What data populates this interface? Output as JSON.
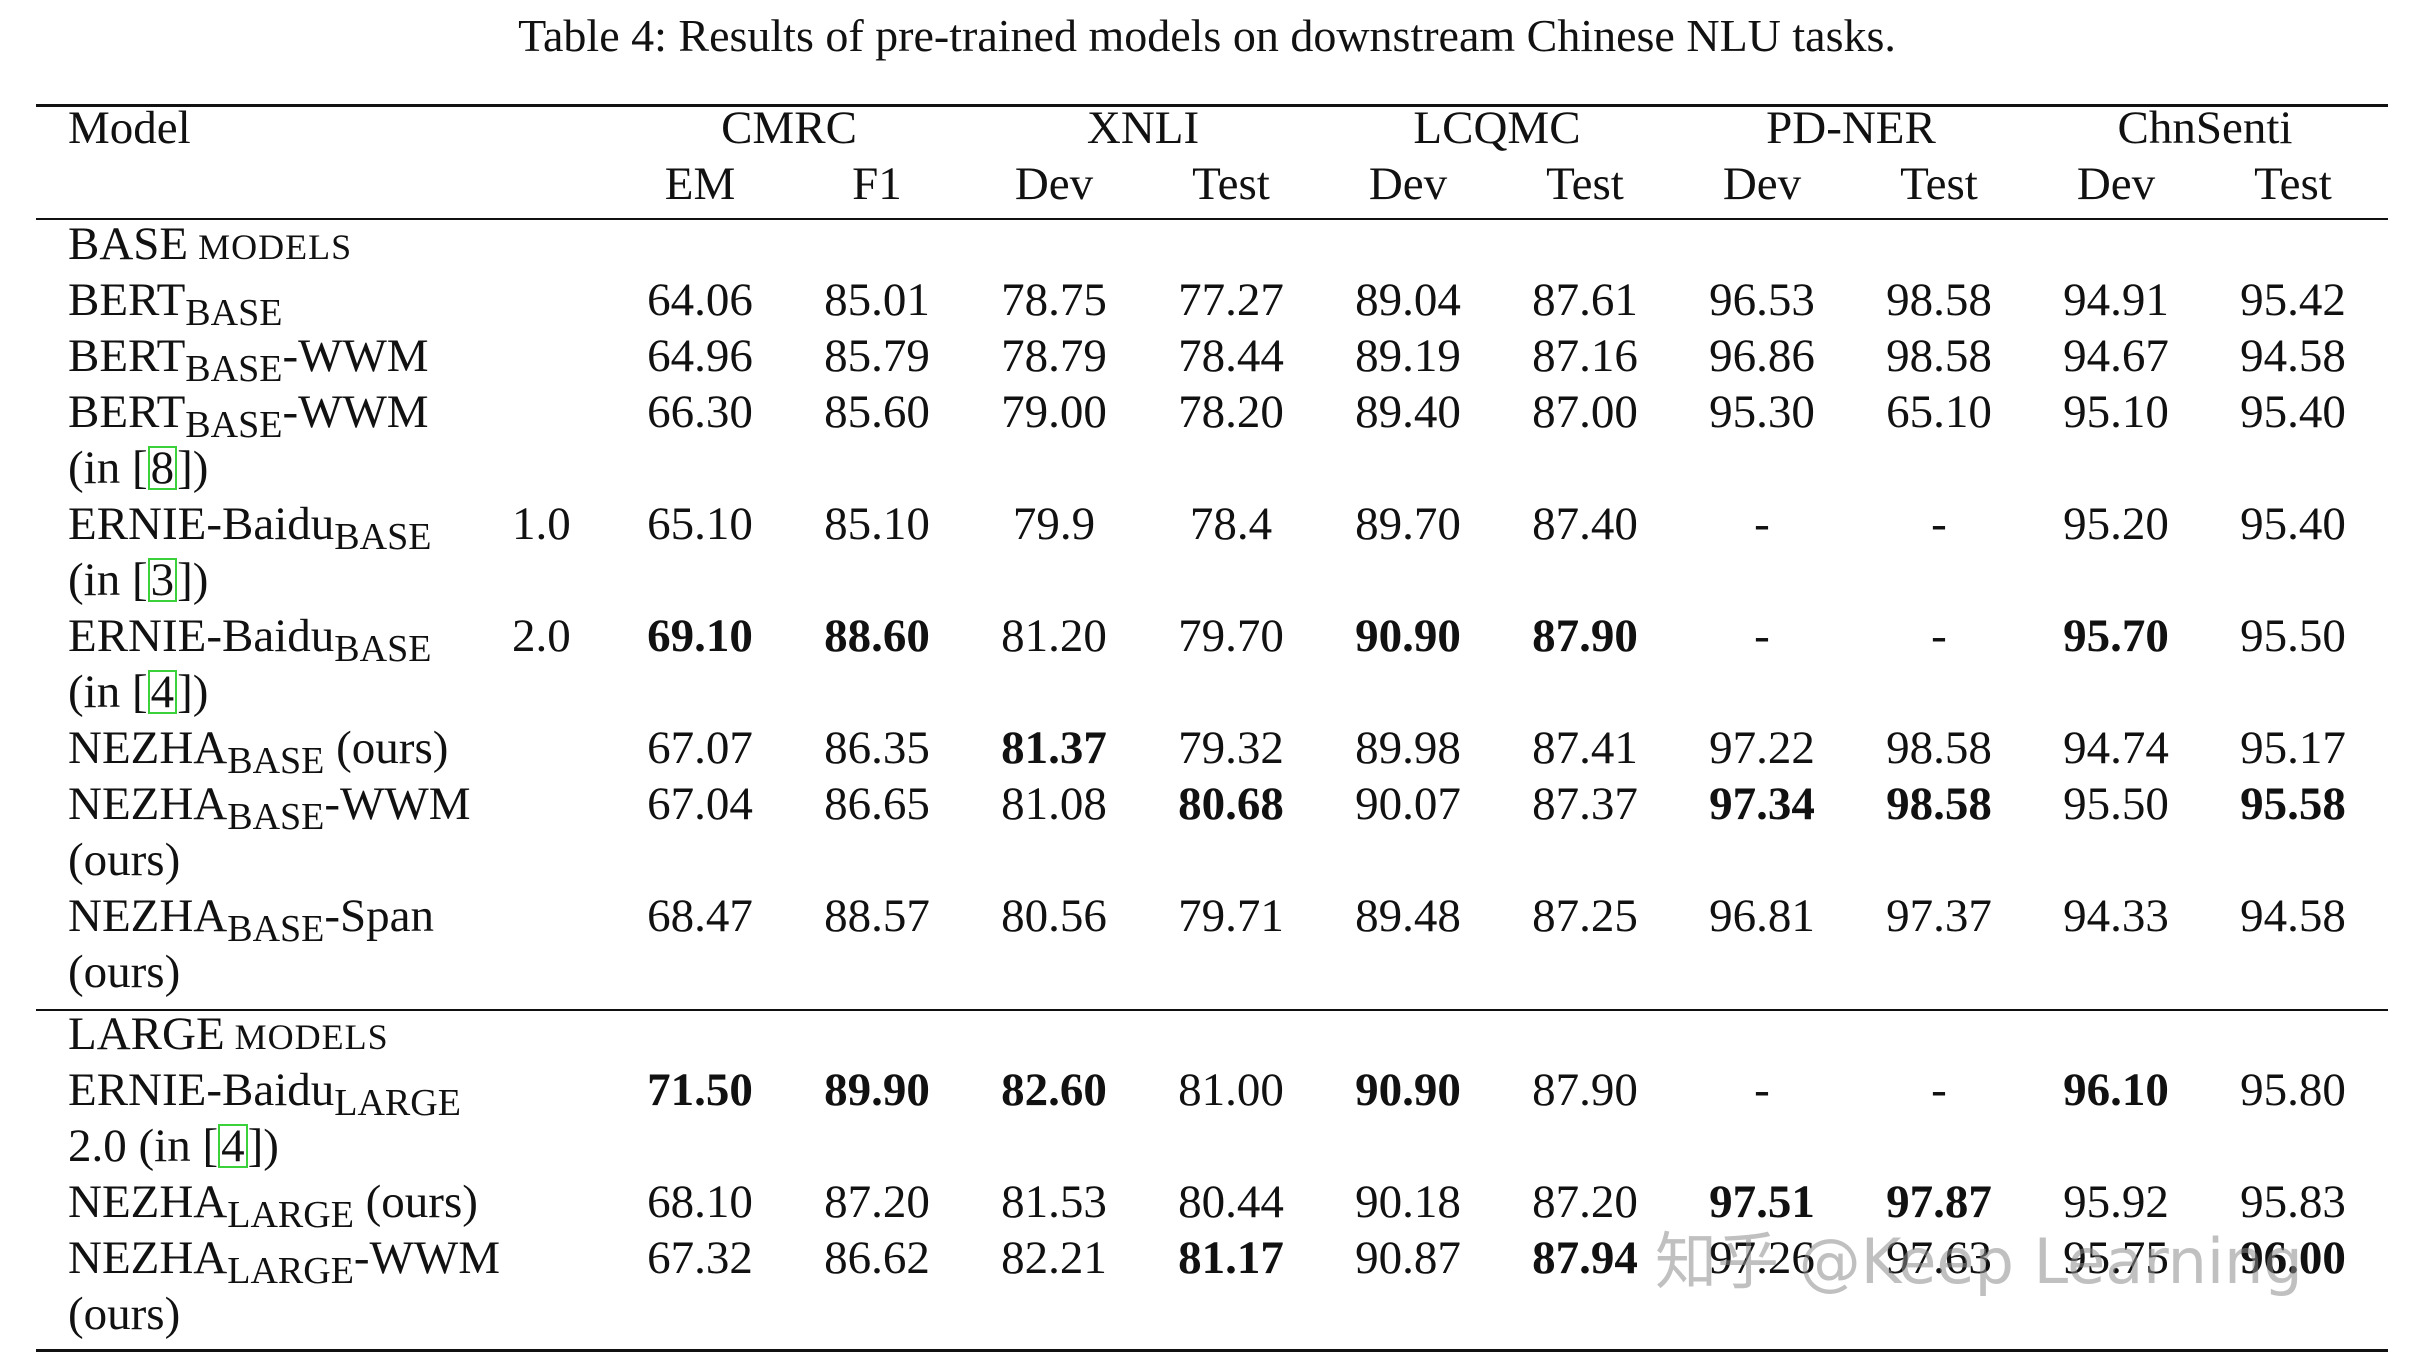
{
  "caption": "Table 4: Results of pre-trained models on downstream Chinese NLU tasks.",
  "header": {
    "model": "Model",
    "groups": [
      "CMRC",
      "XNLI",
      "LCQMC",
      "PD-NER",
      "ChnSenti"
    ],
    "subcols": [
      "EM",
      "F1",
      "Dev",
      "Test",
      "Dev",
      "Test",
      "Dev",
      "Test",
      "Dev",
      "Test"
    ]
  },
  "sections": [
    {
      "title_big": "BASE",
      "title_small": " MODELS",
      "rows": [
        {
          "base": "BERT",
          "sub": "BASE",
          "tail": "",
          "line2_pre": "",
          "ref": "",
          "line2_post": "",
          "ver": "",
          "values": [
            "64.06",
            "85.01",
            "78.75",
            "77.27",
            "89.04",
            "87.61",
            "96.53",
            "98.58",
            "94.91",
            "95.42"
          ],
          "bold": [
            false,
            false,
            false,
            false,
            false,
            false,
            false,
            false,
            false,
            false
          ]
        },
        {
          "base": "BERT",
          "sub": "BASE",
          "tail": "-WWM",
          "line2_pre": "",
          "ref": "",
          "line2_post": "",
          "ver": "",
          "values": [
            "64.96",
            "85.79",
            "78.79",
            "78.44",
            "89.19",
            "87.16",
            "96.86",
            "98.58",
            "94.67",
            "94.58"
          ],
          "bold": [
            false,
            false,
            false,
            false,
            false,
            false,
            false,
            false,
            false,
            false
          ]
        },
        {
          "base": "BERT",
          "sub": "BASE",
          "tail": "-WWM",
          "line2_pre": "(in [",
          "ref": "8",
          "line2_post": "])",
          "ver": "",
          "values": [
            "66.30",
            "85.60",
            "79.00",
            "78.20",
            "89.40",
            "87.00",
            "95.30",
            "65.10",
            "95.10",
            "95.40"
          ],
          "bold": [
            false,
            false,
            false,
            false,
            false,
            false,
            false,
            false,
            false,
            false
          ]
        },
        {
          "base": "ERNIE-Baidu",
          "sub": "BASE",
          "tail": "",
          "line2_pre": "(in [",
          "ref": "3",
          "line2_post": "])",
          "ver": "1.0",
          "values": [
            "65.10",
            "85.10",
            "79.9",
            "78.4",
            "89.70",
            "87.40",
            "-",
            "-",
            "95.20",
            "95.40"
          ],
          "bold": [
            false,
            false,
            false,
            false,
            false,
            false,
            false,
            false,
            false,
            false
          ]
        },
        {
          "base": "ERNIE-Baidu",
          "sub": "BASE",
          "tail": "",
          "line2_pre": "(in [",
          "ref": "4",
          "line2_post": "])",
          "ver": "2.0",
          "values": [
            "69.10",
            "88.60",
            "81.20",
            "79.70",
            "90.90",
            "87.90",
            "-",
            "-",
            "95.70",
            "95.50"
          ],
          "bold": [
            true,
            true,
            false,
            false,
            true,
            true,
            false,
            false,
            true,
            false
          ]
        },
        {
          "base": "NEZHA",
          "sub": "BASE",
          "tail": " (ours)",
          "line2_pre": "",
          "ref": "",
          "line2_post": "",
          "ver": "",
          "values": [
            "67.07",
            "86.35",
            "81.37",
            "79.32",
            "89.98",
            "87.41",
            "97.22",
            "98.58",
            "94.74",
            "95.17"
          ],
          "bold": [
            false,
            false,
            true,
            false,
            false,
            false,
            false,
            false,
            false,
            false
          ]
        },
        {
          "base": "NEZHA",
          "sub": "BASE",
          "tail": "-WWM",
          "line2_pre": "(ours)",
          "ref": "",
          "line2_post": "",
          "ver": "",
          "values": [
            "67.04",
            "86.65",
            "81.08",
            "80.68",
            "90.07",
            "87.37",
            "97.34",
            "98.58",
            "95.50",
            "95.58"
          ],
          "bold": [
            false,
            false,
            false,
            true,
            false,
            false,
            true,
            true,
            false,
            true
          ]
        },
        {
          "base": "NEZHA",
          "sub": "BASE",
          "tail": "-Span",
          "line2_pre": "(ours)",
          "ref": "",
          "line2_post": "",
          "ver": "",
          "values": [
            "68.47",
            "88.57",
            "80.56",
            "79.71",
            "89.48",
            "87.25",
            "96.81",
            "97.37",
            "94.33",
            "94.58"
          ],
          "bold": [
            false,
            false,
            false,
            false,
            false,
            false,
            false,
            false,
            false,
            false
          ]
        }
      ]
    },
    {
      "title_big": "LARGE",
      "title_small": " MODELS",
      "rows": [
        {
          "base": "ERNIE-Baidu",
          "sub": "LARGE",
          "tail": "",
          "line2_pre": "2.0 (in [",
          "ref": "4",
          "line2_post": "])",
          "ver": "",
          "values": [
            "71.50",
            "89.90",
            "82.60",
            "81.00",
            "90.90",
            "87.90",
            "-",
            "-",
            "96.10",
            "95.80"
          ],
          "bold": [
            true,
            true,
            true,
            false,
            true,
            false,
            false,
            false,
            true,
            false
          ]
        },
        {
          "base": "NEZHA",
          "sub": "LARGE",
          "tail": " (ours)",
          "line2_pre": "",
          "ref": "",
          "line2_post": "",
          "ver": "",
          "values": [
            "68.10",
            "87.20",
            "81.53",
            "80.44",
            "90.18",
            "87.20",
            "97.51",
            "97.87",
            "95.92",
            "95.83"
          ],
          "bold": [
            false,
            false,
            false,
            false,
            false,
            false,
            true,
            true,
            false,
            false
          ]
        },
        {
          "base": "NEZHA",
          "sub": "LARGE",
          "tail": "-WWM",
          "line2_pre": "(ours)",
          "ref": "",
          "line2_post": "",
          "ver": "",
          "values": [
            "67.32",
            "86.62",
            "82.21",
            "81.17",
            "90.87",
            "87.94",
            "97.26",
            "97.63",
            "95.75",
            "96.00"
          ],
          "bold": [
            false,
            false,
            false,
            true,
            false,
            true,
            false,
            false,
            false,
            true
          ]
        }
      ]
    }
  ],
  "watermark": "知乎 @Keep Learning"
}
